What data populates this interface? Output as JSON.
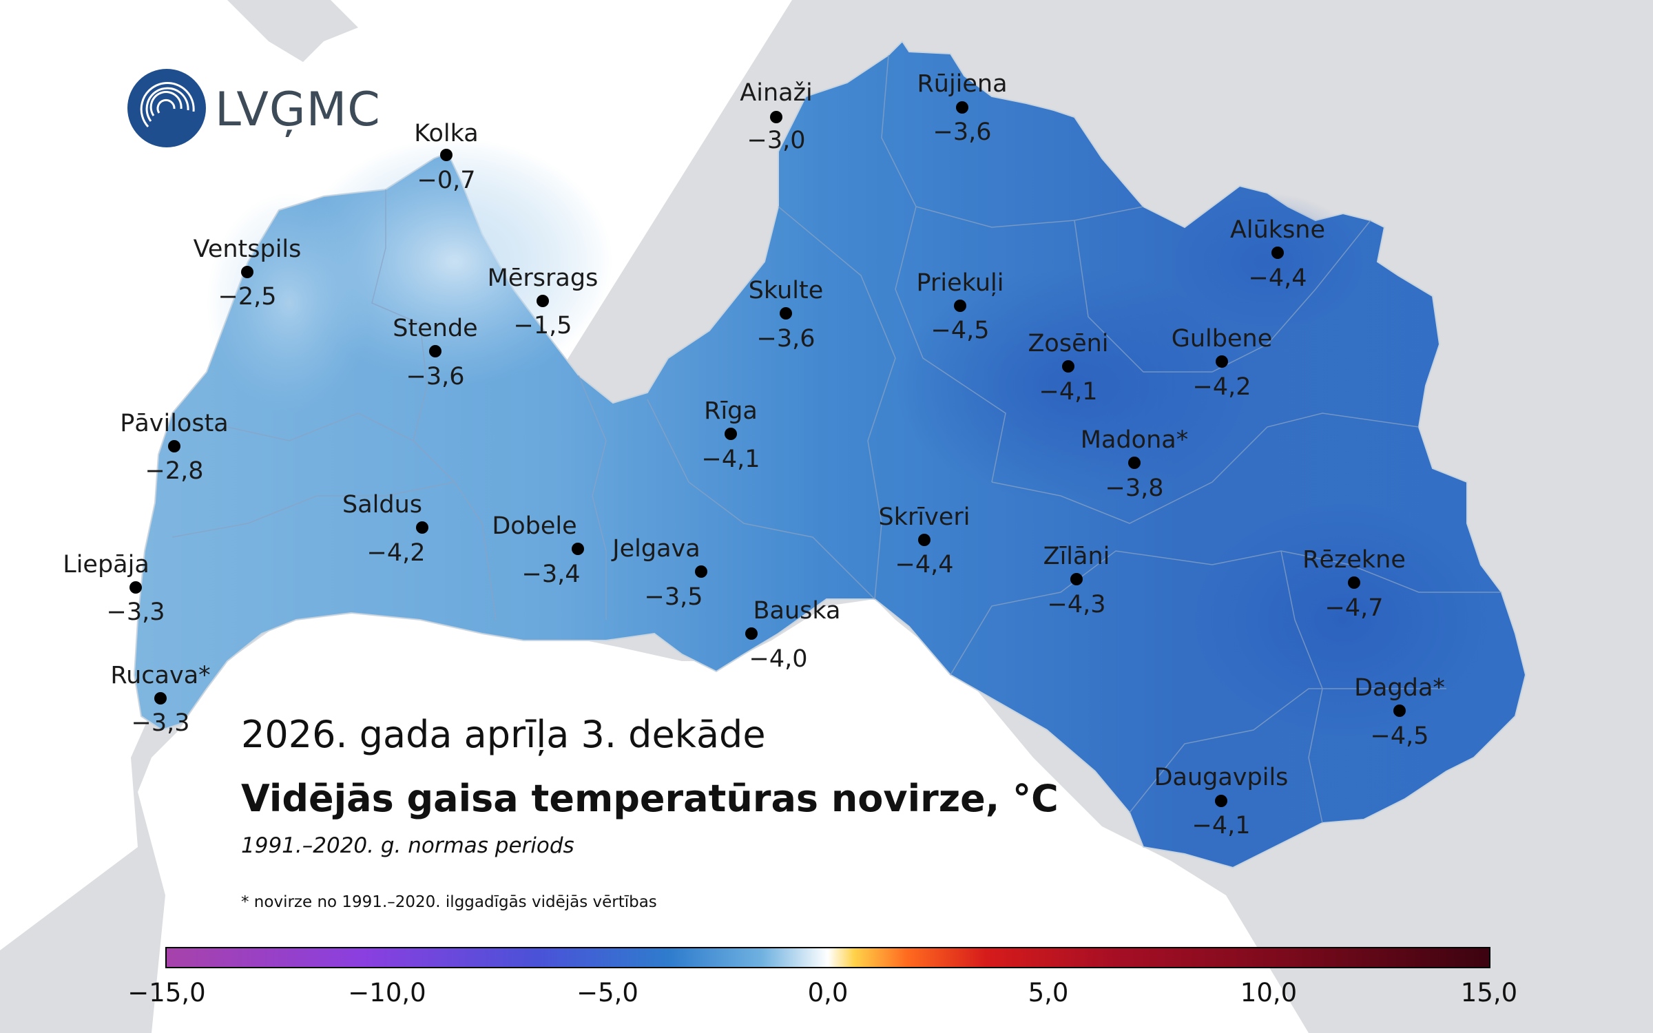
{
  "logo": {
    "text": "LVĢMC"
  },
  "title": {
    "period_label": "2026. gada aprīļa 3. dekāde",
    "main": "Vidējās gaisa temperatūras novirze, °C",
    "normal_period": "1991.–2020. g. normas periods",
    "footnote": "* novirze no 1991.–2020. ilggadīgās vidējās vērtības"
  },
  "colors": {
    "land_west": "#8ec2e4",
    "land_central": "#4f93d2",
    "land_east": "#2f6fc4",
    "sea": "#ffffff",
    "neighbours": "#dcdde0"
  },
  "stations": [
    {
      "name": "Kolka",
      "value": "−0,7"
    },
    {
      "name": "Ainaži",
      "value": "−3,0"
    },
    {
      "name": "Rūjiena",
      "value": "−3,6"
    },
    {
      "name": "Ventspils",
      "value": "−2,5"
    },
    {
      "name": "Mērsrags",
      "value": "−1,5"
    },
    {
      "name": "Skulte",
      "value": "−3,6"
    },
    {
      "name": "Priekuļi",
      "value": "−4,5"
    },
    {
      "name": "Alūksne",
      "value": "−4,4"
    },
    {
      "name": "Stende",
      "value": "−3,6"
    },
    {
      "name": "Zosēni",
      "value": "−4,1"
    },
    {
      "name": "Gulbene",
      "value": "−4,2"
    },
    {
      "name": "Pāvilosta",
      "value": "−2,8"
    },
    {
      "name": "Rīga",
      "value": "−4,1"
    },
    {
      "name": "Madona*",
      "value": "−3,8"
    },
    {
      "name": "Saldus",
      "value": "−4,2"
    },
    {
      "name": "Dobele",
      "value": "−3,4"
    },
    {
      "name": "Skrīveri",
      "value": "−4,4"
    },
    {
      "name": "Jelgava",
      "value": "−3,5"
    },
    {
      "name": "Zīlāni",
      "value": "−4,3"
    },
    {
      "name": "Rēzekne",
      "value": "−4,7"
    },
    {
      "name": "Liepāja",
      "value": "−3,3"
    },
    {
      "name": "Bauska",
      "value": "−4,0"
    },
    {
      "name": "Rucava*",
      "value": "−3,3"
    },
    {
      "name": "Dagda*",
      "value": "−4,5"
    },
    {
      "name": "Daugavpils",
      "value": "−4,1"
    }
  ],
  "colorbar": {
    "min": -15,
    "max": 15,
    "ticks": [
      "−15,0",
      "−10,0",
      "−5,0",
      "0,0",
      "5,0",
      "10,0",
      "15,0"
    ]
  }
}
